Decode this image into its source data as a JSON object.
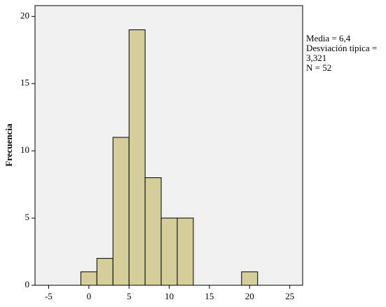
{
  "chart_data": {
    "type": "histogram",
    "y_label": "Frecuencia",
    "bins": [
      -1,
      1,
      3,
      5,
      7,
      9,
      11,
      13,
      15,
      17,
      19,
      21
    ],
    "values": [
      1,
      2,
      11,
      19,
      8,
      5,
      5,
      0,
      0,
      0,
      1
    ],
    "color": "#d3ce9a",
    "xlim": [
      -6.7,
      26.6
    ],
    "xticks": [
      -5,
      0,
      5,
      10,
      15,
      20,
      25
    ],
    "ylim": [
      0,
      20.8
    ],
    "yticks": [
      0,
      5,
      10,
      15,
      20
    ],
    "annotations": [
      "Media = 6,4",
      "Desviación típica =",
      "3,321",
      "N = 52"
    ]
  }
}
